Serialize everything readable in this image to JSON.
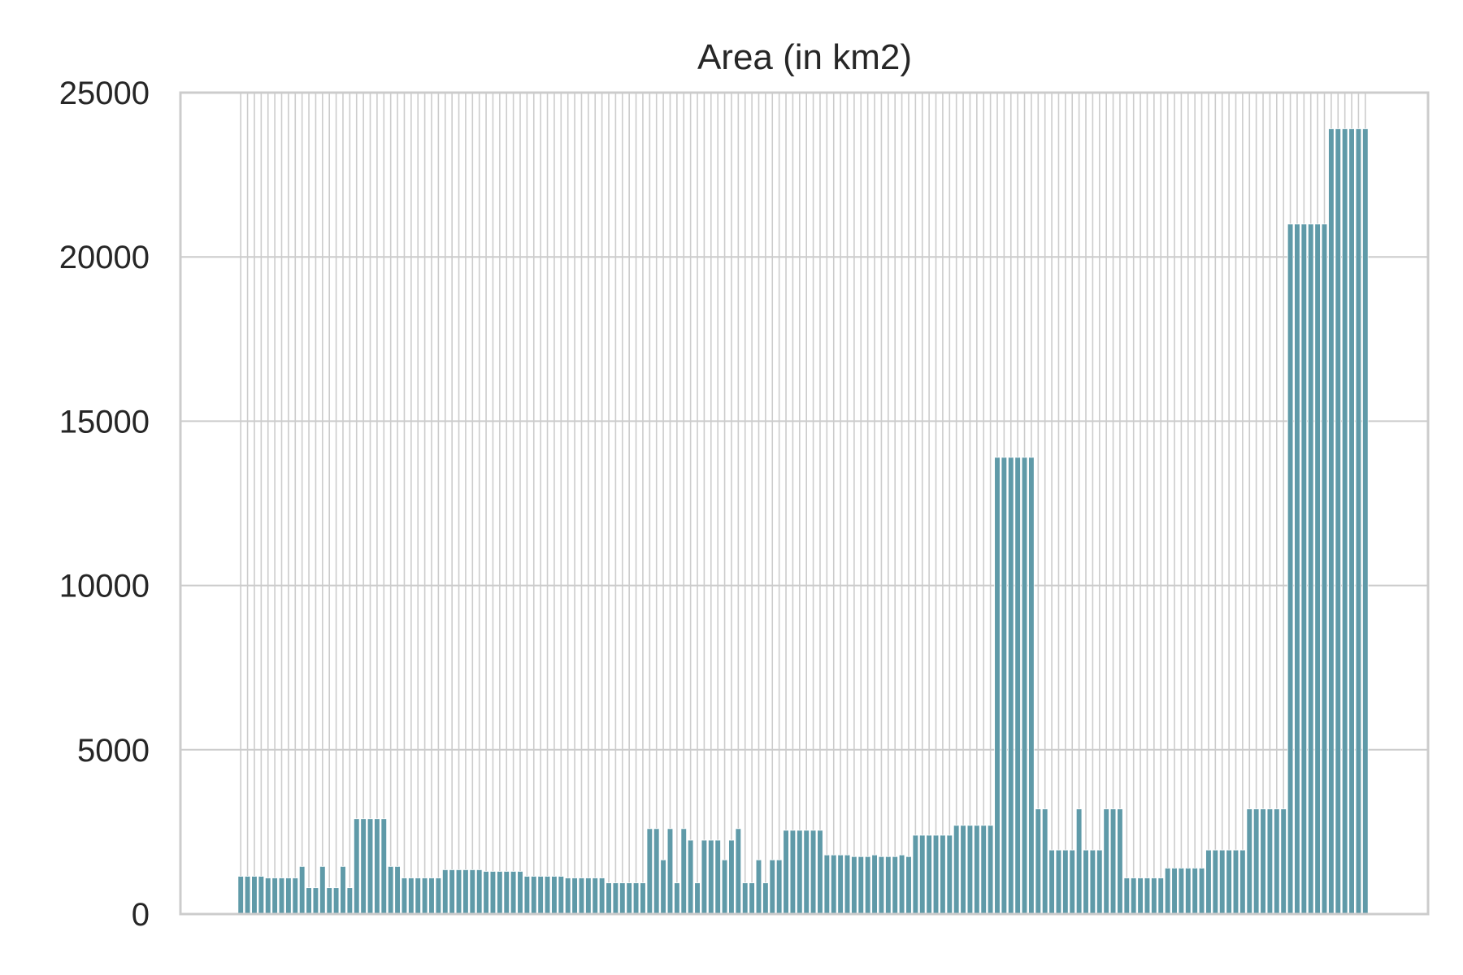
{
  "chart_data": {
    "type": "bar",
    "title": "Area (in km2)",
    "xlabel": "",
    "ylabel": "",
    "ylim": [
      0,
      25000
    ],
    "yticks": [
      0,
      5000,
      10000,
      15000,
      20000,
      25000
    ],
    "ytick_labels": [
      "0",
      "5000",
      "10000",
      "15000",
      "20000",
      "25000"
    ],
    "grid": true,
    "legend": "none",
    "bar_color": "#5f9aa8",
    "values": [
      1150,
      1150,
      1150,
      1150,
      1100,
      1100,
      1100,
      1100,
      1100,
      1450,
      800,
      800,
      1450,
      800,
      800,
      1450,
      800,
      2900,
      2900,
      2900,
      2900,
      2900,
      1450,
      1450,
      1100,
      1100,
      1100,
      1100,
      1100,
      1100,
      1350,
      1350,
      1350,
      1350,
      1350,
      1350,
      1300,
      1300,
      1300,
      1300,
      1300,
      1300,
      1150,
      1150,
      1150,
      1150,
      1150,
      1150,
      1100,
      1100,
      1100,
      1100,
      1100,
      1100,
      950,
      950,
      950,
      950,
      950,
      950,
      2600,
      2600,
      1650,
      2600,
      950,
      2600,
      2250,
      950,
      2250,
      2250,
      2250,
      1650,
      2250,
      2600,
      950,
      950,
      1650,
      950,
      1650,
      1650,
      2550,
      2550,
      2550,
      2550,
      2550,
      2550,
      1800,
      1800,
      1800,
      1800,
      1750,
      1750,
      1750,
      1800,
      1750,
      1750,
      1750,
      1800,
      1750,
      2400,
      2400,
      2400,
      2400,
      2400,
      2400,
      2700,
      2700,
      2700,
      2700,
      2700,
      2700,
      13900,
      13900,
      13900,
      13900,
      13900,
      13900,
      3200,
      3200,
      1950,
      1950,
      1950,
      1950,
      3200,
      1950,
      1950,
      1950,
      3200,
      3200,
      3200,
      1100,
      1100,
      1100,
      1100,
      1100,
      1100,
      1400,
      1400,
      1400,
      1400,
      1400,
      1400,
      1950,
      1950,
      1950,
      1950,
      1950,
      1950,
      3200,
      3200,
      3200,
      3200,
      3200,
      3200,
      21000,
      21000,
      21000,
      21000,
      21000,
      21000,
      23900,
      23900,
      23900,
      23900,
      23900,
      23900
    ]
  }
}
